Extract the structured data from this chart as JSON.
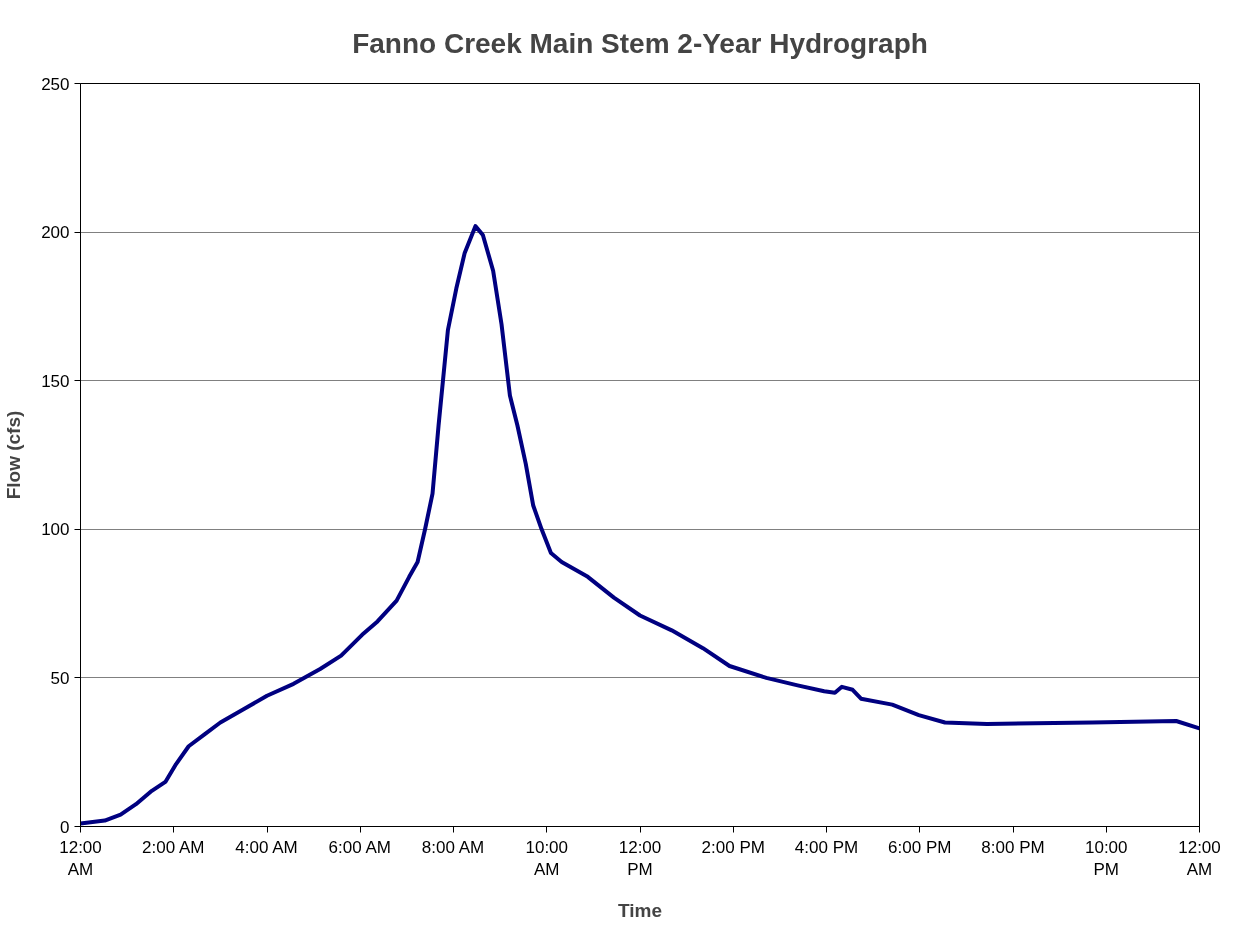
{
  "chart_data": {
    "type": "line",
    "title": "Fanno Creek Main Stem 2-Year Hydrograph",
    "xlabel": "Time",
    "ylabel": "Flow (cfs)",
    "xlim": [
      0,
      24
    ],
    "ylim": [
      0,
      250
    ],
    "xticks": [
      {
        "value": 0,
        "label": "12:00\nAM"
      },
      {
        "value": 2,
        "label": "2:00 AM"
      },
      {
        "value": 4,
        "label": "4:00 AM"
      },
      {
        "value": 6,
        "label": "6:00 AM"
      },
      {
        "value": 8,
        "label": "8:00 AM"
      },
      {
        "value": 10,
        "label": "10:00\nAM"
      },
      {
        "value": 12,
        "label": "12:00\nPM"
      },
      {
        "value": 14,
        "label": "2:00 PM"
      },
      {
        "value": 16,
        "label": "4:00 PM"
      },
      {
        "value": 18,
        "label": "6:00 PM"
      },
      {
        "value": 20,
        "label": "8:00 PM"
      },
      {
        "value": 22,
        "label": "10:00\nPM"
      },
      {
        "value": 24,
        "label": "12:00\nAM"
      }
    ],
    "yticks": [
      0,
      50,
      100,
      150,
      200,
      250
    ],
    "grid": "y",
    "marker": "none",
    "line_style": "solid",
    "series": [
      {
        "color": "#000080",
        "x": [
          0,
          0.52,
          0.86,
          1.19,
          1.53,
          1.82,
          2.05,
          2.32,
          2.66,
          3.0,
          3.45,
          4.0,
          4.57,
          5.14,
          5.59,
          6.04,
          6.37,
          6.78,
          7.05,
          7.23,
          7.39,
          7.55,
          7.68,
          7.88,
          8.06,
          8.24,
          8.47,
          8.63,
          8.85,
          9.03,
          9.21,
          9.37,
          9.55,
          9.71,
          9.89,
          10.09,
          10.32,
          10.88,
          11.44,
          12.0,
          12.68,
          13.35,
          13.92,
          14.71,
          15.38,
          15.95,
          16.18,
          16.33,
          16.56,
          16.74,
          17.41,
          17.98,
          18.54,
          19.44,
          21.7,
          23.5,
          24
        ],
        "values": [
          1,
          2,
          4,
          7.5,
          12,
          15,
          21,
          27,
          31,
          35,
          39,
          44,
          48,
          53,
          57.5,
          64.5,
          69,
          76,
          84,
          89,
          100,
          112,
          135,
          167,
          181,
          193,
          202,
          199,
          187,
          169,
          145,
          135,
          122,
          108,
          100,
          92,
          89,
          84,
          77,
          71,
          66,
          60,
          54,
          50,
          47.5,
          45.5,
          45,
          47,
          46,
          43,
          41,
          37.5,
          35,
          34.5,
          35,
          35.5,
          33
        ]
      }
    ]
  }
}
